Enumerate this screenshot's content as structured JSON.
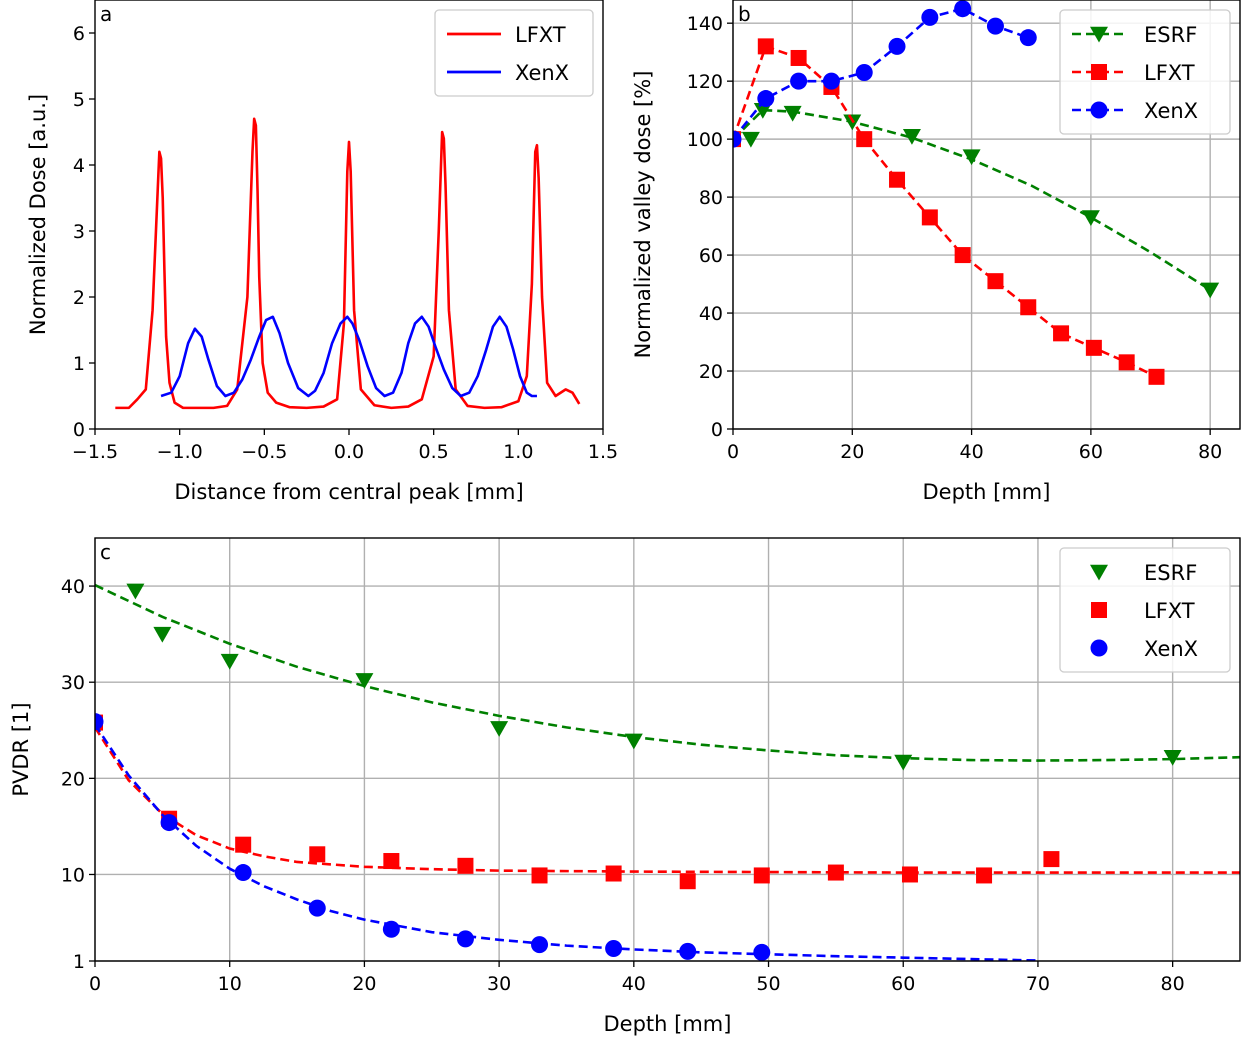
{
  "chart_data": [
    {
      "panel": "a",
      "type": "line",
      "xlabel": "Distance from central peak [mm]",
      "ylabel": "Normalized Dose [a.u.]",
      "xlim": [
        -1.5,
        1.5
      ],
      "ylim": [
        0,
        6.5
      ],
      "xticks": [
        -1.5,
        -1.0,
        -0.5,
        0.0,
        0.5,
        1.0,
        1.5
      ],
      "xtick_labels": [
        "−1.5",
        "−1.0",
        "−0.5",
        "0.0",
        "0.5",
        "1.0",
        "1.5"
      ],
      "yticks": [
        0,
        1,
        2,
        3,
        4,
        5,
        6
      ],
      "ytick_labels": [
        "0",
        "1",
        "2",
        "3",
        "4",
        "5",
        "6"
      ],
      "grid": false,
      "legend": "top-right",
      "series": [
        {
          "name": "LFXT",
          "color": "#ff0000",
          "x": [
            -1.38,
            -1.3,
            -1.25,
            -1.2,
            -1.16,
            -1.13,
            -1.12,
            -1.11,
            -1.1,
            -1.09,
            -1.08,
            -1.06,
            -1.03,
            -0.98,
            -0.9,
            -0.8,
            -0.72,
            -0.66,
            -0.6,
            -0.57,
            -0.56,
            -0.55,
            -0.54,
            -0.53,
            -0.51,
            -0.48,
            -0.43,
            -0.35,
            -0.25,
            -0.15,
            -0.07,
            -0.03,
            -0.01,
            0.0,
            0.01,
            0.03,
            0.07,
            0.15,
            0.25,
            0.35,
            0.43,
            0.5,
            0.53,
            0.55,
            0.56,
            0.57,
            0.59,
            0.63,
            0.7,
            0.8,
            0.9,
            1.0,
            1.05,
            1.08,
            1.1,
            1.11,
            1.12,
            1.14,
            1.17,
            1.22,
            1.28,
            1.32,
            1.36
          ],
          "values": [
            0.32,
            0.32,
            0.45,
            0.6,
            1.8,
            3.6,
            4.2,
            4.1,
            3.5,
            2.4,
            1.4,
            0.7,
            0.4,
            0.32,
            0.32,
            0.32,
            0.35,
            0.6,
            2.0,
            4.2,
            4.7,
            4.6,
            3.6,
            2.3,
            1.0,
            0.55,
            0.4,
            0.33,
            0.32,
            0.34,
            0.45,
            1.6,
            3.9,
            4.35,
            3.9,
            1.8,
            0.6,
            0.36,
            0.32,
            0.34,
            0.45,
            1.1,
            3.0,
            4.5,
            4.4,
            3.7,
            1.8,
            0.6,
            0.35,
            0.32,
            0.33,
            0.42,
            0.8,
            2.2,
            4.2,
            4.3,
            3.8,
            2.0,
            0.7,
            0.5,
            0.6,
            0.55,
            0.38
          ]
        },
        {
          "name": "XenX",
          "color": "#0000ff",
          "x": [
            -1.11,
            -1.05,
            -1.0,
            -0.95,
            -0.91,
            -0.87,
            -0.83,
            -0.78,
            -0.73,
            -0.68,
            -0.63,
            -0.58,
            -0.53,
            -0.49,
            -0.45,
            -0.41,
            -0.36,
            -0.3,
            -0.24,
            -0.2,
            -0.15,
            -0.1,
            -0.05,
            -0.01,
            0.02,
            0.06,
            0.11,
            0.16,
            0.21,
            0.26,
            0.31,
            0.35,
            0.39,
            0.43,
            0.47,
            0.51,
            0.56,
            0.61,
            0.66,
            0.71,
            0.76,
            0.81,
            0.85,
            0.89,
            0.93,
            0.97,
            1.01,
            1.05,
            1.08,
            1.11
          ],
          "values": [
            0.5,
            0.55,
            0.8,
            1.3,
            1.52,
            1.4,
            1.05,
            0.65,
            0.5,
            0.55,
            0.75,
            1.05,
            1.4,
            1.65,
            1.7,
            1.45,
            1.0,
            0.62,
            0.5,
            0.58,
            0.85,
            1.3,
            1.6,
            1.7,
            1.6,
            1.35,
            0.95,
            0.62,
            0.5,
            0.55,
            0.85,
            1.3,
            1.6,
            1.7,
            1.55,
            1.25,
            0.9,
            0.62,
            0.5,
            0.55,
            0.8,
            1.2,
            1.55,
            1.7,
            1.55,
            1.2,
            0.8,
            0.55,
            0.5,
            0.5
          ]
        }
      ]
    },
    {
      "panel": "b",
      "type": "line",
      "xlabel": "Depth [mm]",
      "ylabel": "Normalized valley dose [%]",
      "xlim": [
        0,
        85
      ],
      "ylim": [
        0,
        148
      ],
      "xticks": [
        0,
        20,
        40,
        60,
        80
      ],
      "xtick_labels": [
        "0",
        "20",
        "40",
        "60",
        "80"
      ],
      "yticks": [
        0,
        20,
        40,
        60,
        80,
        100,
        120,
        140
      ],
      "ytick_labels": [
        "0",
        "20",
        "40",
        "60",
        "80",
        "100",
        "120",
        "140"
      ],
      "grid": true,
      "legend": "top-right",
      "series": [
        {
          "name": "ESRF",
          "color": "#008000",
          "marker": "triangle-down",
          "x": [
            0,
            3,
            5,
            10,
            20,
            30,
            40,
            60,
            80
          ],
          "values": [
            100,
            100,
            110,
            109,
            106,
            101,
            94,
            73,
            48
          ],
          "fit_x": [
            0,
            5,
            10,
            20,
            30,
            40,
            50,
            60,
            70,
            80
          ],
          "fit_values": [
            100,
            110,
            109.5,
            106,
            100.5,
            93,
            84,
            73,
            61,
            48
          ]
        },
        {
          "name": "LFXT",
          "color": "#ff0000",
          "marker": "square",
          "x": [
            0,
            5.5,
            11,
            16.5,
            22,
            27.5,
            33,
            38.5,
            44,
            49.5,
            55,
            60.5,
            66,
            71
          ],
          "values": [
            100,
            132,
            128,
            118,
            100,
            86,
            73,
            60,
            51,
            42,
            33,
            28,
            23,
            18
          ]
        },
        {
          "name": "XenX",
          "color": "#0000ff",
          "marker": "circle",
          "x": [
            0,
            5.5,
            11,
            16.5,
            22,
            27.5,
            33,
            38.5,
            44,
            49.5
          ],
          "values": [
            100,
            114,
            120,
            120,
            123,
            132,
            142,
            145,
            139,
            135
          ]
        }
      ]
    },
    {
      "panel": "c",
      "type": "scatter",
      "xlabel": "Depth [mm]",
      "ylabel": "PVDR [1]",
      "xlim": [
        0,
        85
      ],
      "ylim": [
        1,
        45
      ],
      "xticks": [
        0,
        10,
        20,
        30,
        40,
        50,
        60,
        70,
        80
      ],
      "xtick_labels": [
        "0",
        "10",
        "20",
        "30",
        "40",
        "50",
        "60",
        "70",
        "80"
      ],
      "yticks": [
        1,
        10,
        20,
        30,
        40
      ],
      "ytick_labels": [
        "1",
        "10",
        "20",
        "30",
        "40"
      ],
      "grid": true,
      "legend": "top-right",
      "series": [
        {
          "name": "ESRF",
          "color": "#008000",
          "marker": "triangle-down",
          "x": [
            3,
            5,
            10,
            20,
            30,
            40,
            60,
            80
          ],
          "values": [
            39.5,
            35,
            32.2,
            30.2,
            25.2,
            23.9,
            21.7,
            22.2
          ],
          "fit_x": [
            0,
            5,
            10,
            15,
            20,
            25,
            30,
            35,
            40,
            45,
            50,
            55,
            60,
            65,
            70,
            75,
            80,
            85
          ],
          "fit_values": [
            40.1,
            36.8,
            34.0,
            31.6,
            29.6,
            27.9,
            26.5,
            25.3,
            24.3,
            23.5,
            22.9,
            22.4,
            22.1,
            21.9,
            21.85,
            21.9,
            22.0,
            22.2
          ]
        },
        {
          "name": "LFXT",
          "color": "#ff0000",
          "marker": "square",
          "x": [
            0,
            5.5,
            11,
            16.5,
            22,
            27.5,
            33,
            38.5,
            44,
            49.5,
            55,
            60.5,
            66,
            71
          ],
          "values": [
            25.8,
            15.8,
            13.1,
            12.1,
            11.4,
            10.9,
            9.9,
            10.1,
            9.3,
            9.9,
            10.2,
            10.0,
            9.9,
            11.6
          ],
          "fit_x": [
            0,
            2.5,
            5,
            7.5,
            10,
            12.5,
            15,
            20,
            25,
            30,
            40,
            50,
            60,
            70,
            85
          ],
          "fit_values": [
            25.3,
            19.8,
            16.3,
            14.1,
            12.7,
            11.9,
            11.3,
            10.8,
            10.55,
            10.4,
            10.3,
            10.25,
            10.2,
            10.2,
            10.2
          ]
        },
        {
          "name": "XenX",
          "color": "#0000ff",
          "marker": "circle",
          "x": [
            0,
            5.5,
            11,
            16.5,
            22,
            27.5,
            33,
            38.5,
            44,
            49.5
          ],
          "values": [
            25.9,
            15.4,
            10.2,
            6.5,
            4.3,
            3.3,
            2.7,
            2.3,
            2.0,
            1.9
          ],
          "fit_x": [
            0,
            2.5,
            5,
            7.5,
            10,
            12.5,
            15,
            17.5,
            20,
            25,
            30,
            35,
            40,
            45,
            50,
            55,
            60,
            65,
            70
          ],
          "fit_values": [
            25.6,
            20.3,
            16.2,
            13.0,
            10.6,
            8.8,
            7.4,
            6.2,
            5.3,
            4.0,
            3.2,
            2.6,
            2.2,
            1.9,
            1.7,
            1.5,
            1.35,
            1.2,
            1.05
          ]
        }
      ]
    }
  ]
}
